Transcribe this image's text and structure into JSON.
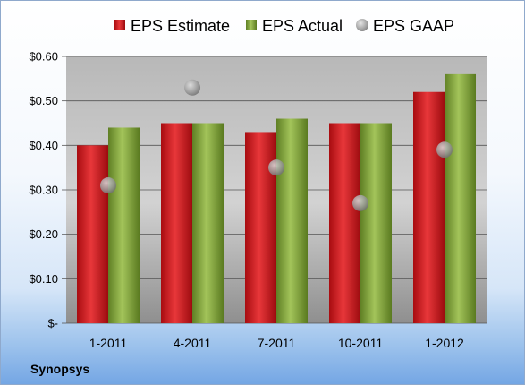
{
  "company": "Synopsys",
  "colors": {
    "estimate": "#d01a1f",
    "actual": "#86a83a",
    "gaap": "#a9aaab"
  },
  "chart_data": {
    "type": "bar",
    "title": "",
    "xlabel": "",
    "ylabel": "",
    "categories": [
      "1-2011",
      "4-2011",
      "7-2011",
      "10-2011",
      "1-2012"
    ],
    "series": [
      {
        "name": "EPS Estimate",
        "kind": "bar",
        "values": [
          0.4,
          0.45,
          0.43,
          0.45,
          0.52
        ]
      },
      {
        "name": "EPS Actual",
        "kind": "bar",
        "values": [
          0.44,
          0.45,
          0.46,
          0.45,
          0.56
        ]
      },
      {
        "name": "EPS GAAP",
        "kind": "marker",
        "values": [
          0.31,
          0.53,
          0.35,
          0.27,
          0.39
        ]
      }
    ],
    "ylim": [
      0,
      0.6
    ],
    "yticks": [
      0,
      0.1,
      0.2,
      0.3,
      0.4,
      0.5,
      0.6
    ],
    "ytick_labels": [
      "$-",
      "$0.10",
      "$0.20",
      "$0.30",
      "$0.40",
      "$0.50",
      "$0.60"
    ],
    "legend_position": "top",
    "grid": true
  }
}
